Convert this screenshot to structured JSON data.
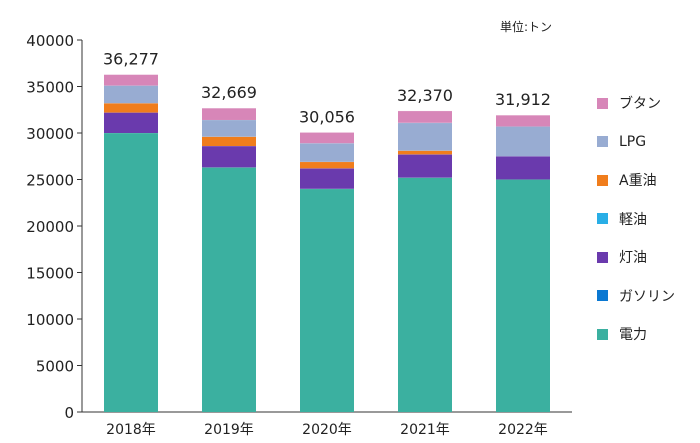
{
  "unit_label": "単位:トン",
  "chart_data": {
    "type": "bar",
    "stacked": true,
    "categories": [
      "2018年",
      "2019年",
      "2020年",
      "2021年",
      "2022年"
    ],
    "ylim": [
      0,
      40000
    ],
    "yticks": [
      "0",
      "5000",
      "10000",
      "15000",
      "20000",
      "25000",
      "30000",
      "35000",
      "40000"
    ],
    "totals": [
      "36,277",
      "32,669",
      "30,056",
      "32,370",
      "31,912"
    ],
    "series": [
      {
        "name": "電力",
        "color": "#3bb0a0",
        "values": [
          30000,
          26300,
          24000,
          25200,
          25000
        ]
      },
      {
        "name": "ガソリン",
        "color": "#0a78d2",
        "values": [
          0,
          0,
          0,
          0,
          0
        ]
      },
      {
        "name": "灯油",
        "color": "#6a3aad",
        "values": [
          2200,
          2300,
          2200,
          2500,
          2500
        ]
      },
      {
        "name": "軽油",
        "color": "#29aee6",
        "values": [
          0,
          0,
          0,
          0,
          0
        ]
      },
      {
        "name": "A重油",
        "color": "#f07d1c",
        "values": [
          1000,
          1000,
          700,
          400,
          0
        ]
      },
      {
        "name": "LPG",
        "color": "#98acd2",
        "values": [
          1900,
          1800,
          2000,
          3000,
          3200
        ]
      },
      {
        "name": "ブタン",
        "color": "#d786b8",
        "values": [
          1177,
          1269,
          1156,
          1270,
          1212
        ]
      }
    ],
    "legend_order": [
      "ブタン",
      "LPG",
      "A重油",
      "軽油",
      "灯油",
      "ガソリン",
      "電力"
    ],
    "legend_position": "right",
    "grid": false
  }
}
